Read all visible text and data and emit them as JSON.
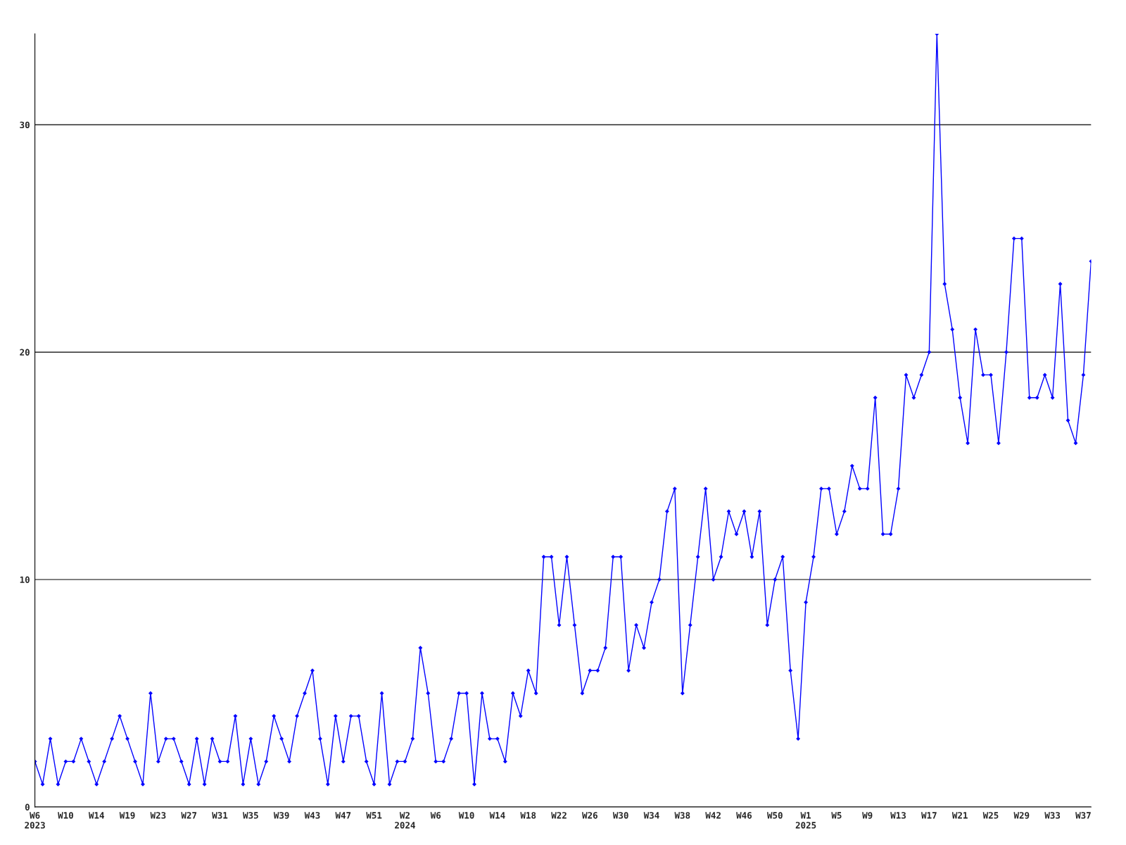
{
  "chart_data": {
    "type": "line",
    "categories": [
      "W6\n2023",
      null,
      null,
      null,
      "W10",
      null,
      null,
      null,
      "W14",
      null,
      null,
      null,
      "W19",
      null,
      null,
      null,
      "W23",
      null,
      null,
      null,
      "W27",
      null,
      null,
      null,
      "W31",
      null,
      null,
      null,
      "W35",
      null,
      null,
      null,
      "W39",
      null,
      null,
      null,
      "W43",
      null,
      null,
      null,
      "W47",
      null,
      null,
      null,
      "W51",
      null,
      null,
      null,
      "W2\n2024",
      null,
      null,
      null,
      "W6",
      null,
      null,
      null,
      "W10",
      null,
      null,
      null,
      "W14",
      null,
      null,
      null,
      "W18",
      null,
      null,
      null,
      "W22",
      null,
      null,
      null,
      "W26",
      null,
      null,
      null,
      "W30",
      null,
      null,
      null,
      "W34",
      null,
      null,
      null,
      "W38",
      null,
      null,
      null,
      "W42",
      null,
      null,
      null,
      "W46",
      null,
      null,
      null,
      "W50",
      null,
      null,
      null,
      "W1\n2025",
      null,
      null,
      null,
      "W5",
      null,
      null,
      null,
      "W9",
      null,
      null,
      null,
      "W13",
      null,
      null,
      null,
      "W17",
      null,
      null,
      null,
      "W21",
      null,
      null,
      null,
      "W25",
      null,
      null,
      null,
      "W29",
      null,
      null,
      null,
      "W33",
      null,
      null,
      null,
      "W37",
      null
    ],
    "series": [
      {
        "color": "#0000ff",
        "values": [
          2,
          1,
          3,
          1,
          2,
          2,
          3,
          2,
          1,
          2,
          3,
          4,
          3,
          2,
          1,
          5,
          2,
          3,
          3,
          2,
          1,
          3,
          1,
          3,
          2,
          2,
          4,
          1,
          3,
          1,
          2,
          4,
          3,
          2,
          4,
          5,
          6,
          3,
          1,
          4,
          2,
          4,
          4,
          2,
          1,
          5,
          1,
          2,
          2,
          3,
          7,
          5,
          2,
          2,
          3,
          5,
          5,
          1,
          5,
          3,
          3,
          2,
          5,
          4,
          6,
          5,
          11,
          11,
          8,
          11,
          8,
          5,
          6,
          6,
          7,
          11,
          11,
          6,
          8,
          7,
          9,
          10,
          13,
          14,
          5,
          8,
          11,
          14,
          10,
          11,
          13,
          12,
          13,
          11,
          13,
          8,
          10,
          11,
          6,
          3,
          9,
          11,
          14,
          14,
          12,
          13,
          15,
          14,
          14,
          18,
          12,
          12,
          14,
          19,
          18,
          19,
          20,
          34,
          23,
          21,
          18,
          16,
          21,
          19,
          19,
          16,
          20,
          25,
          25,
          18,
          18,
          19,
          18,
          23,
          17,
          16,
          19,
          24
        ]
      }
    ],
    "ylim": [
      0,
      34
    ],
    "yticks": [
      0,
      10,
      20,
      30
    ],
    "grid": "y",
    "marker": "diamond",
    "line_style": "solid"
  }
}
